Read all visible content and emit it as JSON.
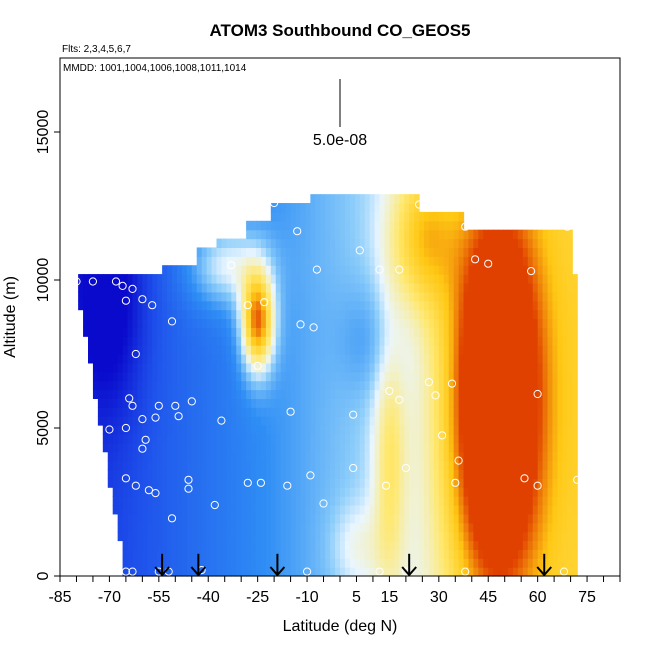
{
  "chart_data": {
    "type": "heatmap",
    "title": "ATOM3 Southbound CO_GEOS5",
    "subtitle_flights": "Flts: 2,3,4,5,6,7",
    "subtitle_dates": "MMDD: 1001,1004,1006,1008,1011,1014",
    "xlabel": "Latitude (deg N)",
    "ylabel": "Altitude (m)",
    "xlim": [
      -85,
      85
    ],
    "ylim": [
      0,
      17500
    ],
    "x_tick_values": [
      -85,
      -70,
      -55,
      -40,
      -25,
      -10,
      5,
      15,
      30,
      45,
      60,
      75
    ],
    "x_tick_labels": [
      "-85",
      "-70",
      "-55",
      "-40",
      "-25",
      "-10",
      "5",
      "15",
      "30",
      "45",
      "60",
      "75"
    ],
    "y_tick_values": [
      0,
      5000,
      10000,
      15000
    ],
    "y_tick_labels": [
      "0",
      "5000",
      "10000",
      "15000"
    ],
    "scale_bar_label": "5.0e-08",
    "colors": {
      "low": "#0a0acc",
      "mid_low": "#2f8ef5",
      "mid": "#eaf6ff",
      "mid_high": "#ffd21a",
      "high": "#e04000",
      "point_outline": "#ffffff",
      "arrow": "#000000"
    },
    "arrow_latitudes": [
      -54,
      -43,
      -19,
      21,
      62
    ],
    "sample_points": [
      {
        "lat": -80,
        "alt": 9950
      },
      {
        "lat": -75,
        "alt": 9950
      },
      {
        "lat": -68,
        "alt": 9950
      },
      {
        "lat": -66,
        "alt": 9800
      },
      {
        "lat": -63,
        "alt": 9700
      },
      {
        "lat": -65,
        "alt": 9300
      },
      {
        "lat": -60,
        "alt": 9350
      },
      {
        "lat": -57,
        "alt": 9150
      },
      {
        "lat": -51,
        "alt": 8600
      },
      {
        "lat": -62,
        "alt": 7500
      },
      {
        "lat": -64,
        "alt": 6000
      },
      {
        "lat": -63,
        "alt": 5750
      },
      {
        "lat": -55,
        "alt": 5750
      },
      {
        "lat": -50,
        "alt": 5750
      },
      {
        "lat": -45,
        "alt": 5900
      },
      {
        "lat": -60,
        "alt": 5300
      },
      {
        "lat": -56,
        "alt": 5350
      },
      {
        "lat": -49,
        "alt": 5400
      },
      {
        "lat": -65,
        "alt": 5000
      },
      {
        "lat": -70,
        "alt": 4950
      },
      {
        "lat": -59,
        "alt": 4600
      },
      {
        "lat": -60,
        "alt": 4300
      },
      {
        "lat": -65,
        "alt": 3300
      },
      {
        "lat": -62,
        "alt": 3050
      },
      {
        "lat": -58,
        "alt": 2900
      },
      {
        "lat": -56,
        "alt": 2800
      },
      {
        "lat": -46,
        "alt": 3250
      },
      {
        "lat": -46,
        "alt": 2950
      },
      {
        "lat": -38,
        "alt": 2400
      },
      {
        "lat": -51,
        "alt": 1950
      },
      {
        "lat": -65,
        "alt": 150
      },
      {
        "lat": -63,
        "alt": 150
      },
      {
        "lat": -55,
        "alt": 150
      },
      {
        "lat": -52,
        "alt": 150
      },
      {
        "lat": -42,
        "alt": 200
      },
      {
        "lat": -33,
        "alt": 10500
      },
      {
        "lat": -47,
        "alt": 10950
      },
      {
        "lat": -28,
        "alt": 9150
      },
      {
        "lat": -23,
        "alt": 9250
      },
      {
        "lat": -20,
        "alt": 12600
      },
      {
        "lat": -13,
        "alt": 11650
      },
      {
        "lat": -7,
        "alt": 10350
      },
      {
        "lat": -12,
        "alt": 8500
      },
      {
        "lat": -8,
        "alt": 8400
      },
      {
        "lat": -25,
        "alt": 7100
      },
      {
        "lat": -36,
        "alt": 5250
      },
      {
        "lat": -15,
        "alt": 5550
      },
      {
        "lat": -28,
        "alt": 3150
      },
      {
        "lat": -24,
        "alt": 3150
      },
      {
        "lat": -16,
        "alt": 3050
      },
      {
        "lat": -9,
        "alt": 3400
      },
      {
        "lat": -5,
        "alt": 2450
      },
      {
        "lat": 4,
        "alt": 5450
      },
      {
        "lat": 4,
        "alt": 3650
      },
      {
        "lat": 6,
        "alt": 11000
      },
      {
        "lat": 12,
        "alt": 10350
      },
      {
        "lat": 18,
        "alt": 10350
      },
      {
        "lat": 15,
        "alt": 6250
      },
      {
        "lat": 18,
        "alt": 5950
      },
      {
        "lat": 20,
        "alt": 3650
      },
      {
        "lat": 14,
        "alt": 3050
      },
      {
        "lat": 27,
        "alt": 6550
      },
      {
        "lat": 29,
        "alt": 6100
      },
      {
        "lat": 31,
        "alt": 4750
      },
      {
        "lat": 34,
        "alt": 6500
      },
      {
        "lat": 36,
        "alt": 3900
      },
      {
        "lat": 35,
        "alt": 3150
      },
      {
        "lat": 24,
        "alt": 12550
      },
      {
        "lat": 38,
        "alt": 11800
      },
      {
        "lat": 41,
        "alt": 10700
      },
      {
        "lat": 45,
        "alt": 10550
      },
      {
        "lat": 58,
        "alt": 10300
      },
      {
        "lat": 60,
        "alt": 6150
      },
      {
        "lat": 56,
        "alt": 3300
      },
      {
        "lat": 60,
        "alt": 3050
      },
      {
        "lat": 72,
        "alt": 3250
      },
      {
        "lat": 69,
        "alt": 11800
      },
      {
        "lat": -10,
        "alt": 150
      },
      {
        "lat": 12,
        "alt": 150
      },
      {
        "lat": 20,
        "alt": 150
      },
      {
        "lat": 38,
        "alt": 150
      },
      {
        "lat": 68,
        "alt": 150
      }
    ]
  }
}
